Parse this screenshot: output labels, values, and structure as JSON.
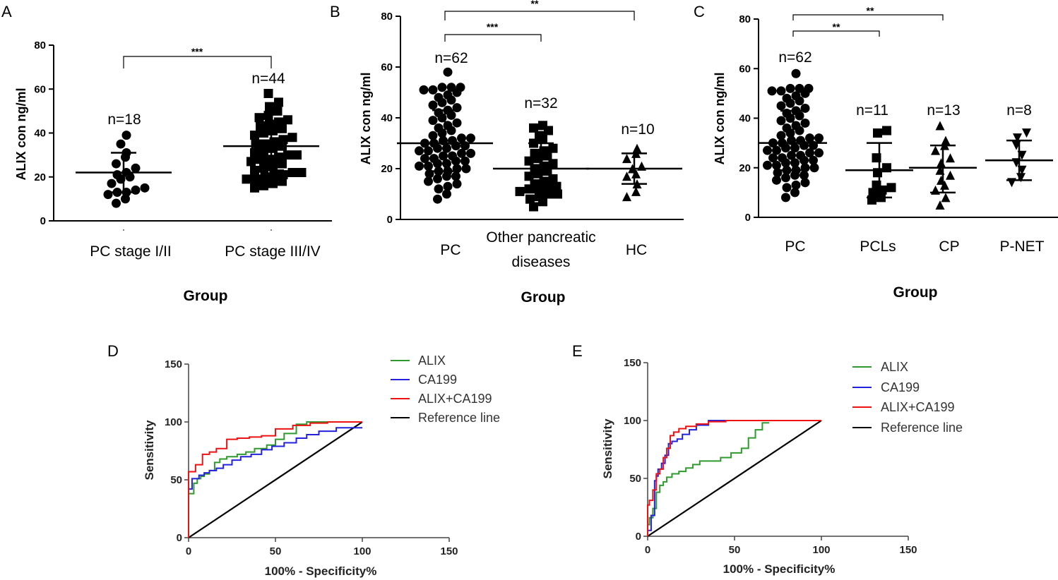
{
  "figure": {
    "panel_labels": [
      "A",
      "B",
      "C",
      "D",
      "E"
    ]
  },
  "chart_data": [
    {
      "id": "A",
      "type": "scatter",
      "ylabel": "ALIX con ng/ml",
      "xlabel": "Group",
      "ylim": [
        0,
        80
      ],
      "yticks": [
        0,
        20,
        40,
        60,
        80
      ],
      "groups": [
        {
          "label": "PC stage I/II",
          "n_label": "n=18",
          "marker": "circle",
          "mean": 22,
          "sd_low": 13,
          "sd_high": 31,
          "values": [
            8,
            10,
            12,
            13,
            13,
            14,
            15,
            17,
            19,
            20,
            21,
            22,
            24,
            26,
            29,
            31,
            35,
            39
          ]
        },
        {
          "label": "PC stage III/IV",
          "n_label": "n=44",
          "marker": "square",
          "mean": 34,
          "sd_low": 23,
          "sd_high": 45,
          "values": [
            15,
            16,
            17,
            18,
            19,
            19,
            20,
            21,
            21,
            22,
            22,
            23,
            24,
            25,
            26,
            27,
            28,
            28,
            29,
            30,
            30,
            31,
            32,
            33,
            34,
            35,
            35,
            36,
            37,
            38,
            39,
            40,
            41,
            42,
            43,
            44,
            45,
            46,
            47,
            48,
            50,
            52,
            54,
            58
          ]
        }
      ],
      "significance": [
        {
          "from": 0,
          "to": 1,
          "label": "***"
        }
      ]
    },
    {
      "id": "B",
      "type": "scatter",
      "ylabel": "ALIX con ng/ml",
      "xlabel": "Group",
      "ylim": [
        0,
        80
      ],
      "yticks": [
        0,
        20,
        40,
        60,
        80
      ],
      "groups": [
        {
          "label": "PC",
          "n_label": "n=62",
          "marker": "circle",
          "mean": 30,
          "sd_low": 19,
          "sd_high": 43,
          "values": [
            8,
            10,
            12,
            13,
            14,
            15,
            16,
            17,
            17,
            18,
            19,
            19,
            20,
            20,
            21,
            21,
            22,
            22,
            23,
            23,
            24,
            24,
            25,
            25,
            26,
            26,
            27,
            27,
            28,
            28,
            29,
            29,
            30,
            30,
            31,
            31,
            32,
            32,
            33,
            34,
            35,
            36,
            37,
            38,
            39,
            40,
            41,
            42,
            43,
            44,
            45,
            46,
            47,
            48,
            49,
            50,
            51,
            51,
            52,
            52,
            52,
            58
          ]
        },
        {
          "label": "Other pancreatic",
          "label2": "diseases",
          "n_label": "n=32",
          "marker": "square",
          "mean": 20,
          "sd_low": 11,
          "sd_high": 30,
          "values": [
            5,
            7,
            8,
            9,
            10,
            10,
            11,
            12,
            12,
            13,
            13,
            14,
            15,
            16,
            17,
            18,
            19,
            20,
            21,
            22,
            23,
            24,
            25,
            26,
            27,
            28,
            30,
            32,
            33,
            35,
            36,
            37
          ]
        },
        {
          "label": "HC",
          "n_label": "n=10",
          "marker": "triangle",
          "mean": 20,
          "sd_low": 14,
          "sd_high": 26,
          "values": [
            9,
            11,
            14,
            17,
            18,
            20,
            21,
            24,
            26,
            28
          ]
        }
      ],
      "significance": [
        {
          "from": 0,
          "to": 1,
          "label": "***"
        },
        {
          "from": 0,
          "to": 2,
          "label": "**"
        }
      ]
    },
    {
      "id": "C",
      "type": "scatter",
      "ylabel": "ALIX con ng/ml",
      "xlabel": "Group",
      "ylim": [
        0,
        80
      ],
      "yticks": [
        0,
        20,
        40,
        60,
        80
      ],
      "groups": [
        {
          "label": "PC",
          "n_label": "n=62",
          "marker": "circle",
          "mean": 30,
          "sd_low": 19,
          "sd_high": 43,
          "values": [
            8,
            10,
            12,
            13,
            14,
            15,
            16,
            17,
            17,
            18,
            19,
            19,
            20,
            20,
            21,
            21,
            22,
            22,
            23,
            23,
            24,
            24,
            25,
            25,
            26,
            26,
            27,
            27,
            28,
            28,
            29,
            29,
            30,
            30,
            31,
            31,
            32,
            32,
            33,
            34,
            35,
            36,
            37,
            38,
            39,
            40,
            41,
            42,
            43,
            44,
            45,
            46,
            47,
            48,
            49,
            50,
            51,
            51,
            52,
            52,
            52,
            58
          ]
        },
        {
          "label": "PCLs",
          "n_label": "n=11",
          "marker": "square",
          "mean": 19,
          "sd_low": 8,
          "sd_high": 30,
          "values": [
            7,
            8,
            10,
            11,
            12,
            13,
            18,
            20,
            24,
            34,
            35
          ]
        },
        {
          "label": "CP",
          "n_label": "n=13",
          "marker": "triangle",
          "mean": 20,
          "sd_low": 10,
          "sd_high": 29,
          "values": [
            5,
            8,
            11,
            13,
            15,
            17,
            19,
            22,
            24,
            27,
            29,
            31,
            37
          ]
        },
        {
          "label": "P-NET",
          "n_label": "n=8",
          "marker": "invtriangle",
          "mean": 23,
          "sd_low": 15,
          "sd_high": 31,
          "values": [
            14,
            16,
            19,
            22,
            25,
            29,
            32,
            34
          ]
        }
      ],
      "significance": [
        {
          "from": 0,
          "to": 1,
          "label": "**"
        },
        {
          "from": 0,
          "to": 2,
          "label": "**"
        }
      ]
    },
    {
      "id": "D",
      "type": "line",
      "xlabel": "100% - Specificity%",
      "ylabel": "Sensitivity",
      "xlim": [
        0,
        150
      ],
      "ylim": [
        0,
        150
      ],
      "xticks": [
        0,
        50,
        100,
        150
      ],
      "yticks": [
        0,
        50,
        100,
        150
      ],
      "series": [
        {
          "name": "ALIX",
          "color": "#2e9a2e",
          "x": [
            0,
            0,
            3,
            5,
            7,
            9,
            12,
            15,
            18,
            22,
            28,
            33,
            38,
            45,
            50,
            55,
            62,
            68,
            100
          ],
          "y": [
            0,
            36,
            38,
            47,
            51,
            53,
            55,
            58,
            65,
            68,
            70,
            72,
            74,
            77,
            80,
            85,
            90,
            98,
            100
          ]
        },
        {
          "name": "CA199",
          "color": "#2222dd",
          "x": [
            0,
            0,
            2,
            6,
            9,
            12,
            16,
            20,
            25,
            30,
            36,
            42,
            48,
            55,
            62,
            68,
            75,
            85,
            100
          ],
          "y": [
            0,
            40,
            42,
            51,
            54,
            56,
            58,
            60,
            63,
            67,
            70,
            72,
            76,
            79,
            82,
            86,
            89,
            92,
            95
          ]
        },
        {
          "name": "ALIX+CA199",
          "color": "#ee1111",
          "x": [
            0,
            0,
            4,
            8,
            12,
            16,
            22,
            28,
            35,
            42,
            50,
            60,
            70,
            80,
            100
          ],
          "y": [
            0,
            55,
            57,
            63,
            72,
            74,
            77,
            85,
            86,
            87,
            88,
            94,
            97,
            99,
            100
          ]
        },
        {
          "name": "Reference line",
          "color": "#000000",
          "x": [
            0,
            100
          ],
          "y": [
            0,
            100
          ]
        }
      ]
    },
    {
      "id": "E",
      "type": "line",
      "xlabel": "100% - Specificity%",
      "ylabel": "Sensitivity",
      "xlim": [
        0,
        150
      ],
      "ylim": [
        0,
        150
      ],
      "xticks": [
        0,
        50,
        100,
        150
      ],
      "yticks": [
        0,
        50,
        100,
        150
      ],
      "series": [
        {
          "name": "ALIX",
          "color": "#2e9a2e",
          "x": [
            0,
            1,
            3,
            5,
            7,
            9,
            11,
            14,
            18,
            22,
            26,
            30,
            36,
            42,
            48,
            54,
            58,
            62,
            66,
            70
          ],
          "y": [
            0,
            10,
            16,
            24,
            38,
            44,
            47,
            51,
            54,
            56,
            59,
            62,
            65,
            65,
            68,
            72,
            76,
            85,
            92,
            98
          ]
        },
        {
          "name": "CA199",
          "color": "#2222dd",
          "x": [
            0,
            2,
            4,
            5,
            6,
            8,
            10,
            12,
            14,
            17,
            20,
            24,
            28,
            35,
            45,
            100
          ],
          "y": [
            0,
            5,
            18,
            48,
            52,
            58,
            63,
            70,
            80,
            82,
            84,
            88,
            92,
            96,
            100,
            100
          ]
        },
        {
          "name": "ALIX+CA199",
          "color": "#ee1111",
          "x": [
            0,
            1,
            3,
            5,
            7,
            9,
            11,
            13,
            15,
            18,
            22,
            28,
            35,
            45,
            100
          ],
          "y": [
            0,
            27,
            31,
            40,
            54,
            58,
            68,
            76,
            87,
            90,
            93,
            95,
            97,
            99,
            100
          ]
        },
        {
          "name": "Reference line",
          "color": "#000000",
          "x": [
            0,
            100
          ],
          "y": [
            0,
            100
          ]
        }
      ]
    }
  ]
}
